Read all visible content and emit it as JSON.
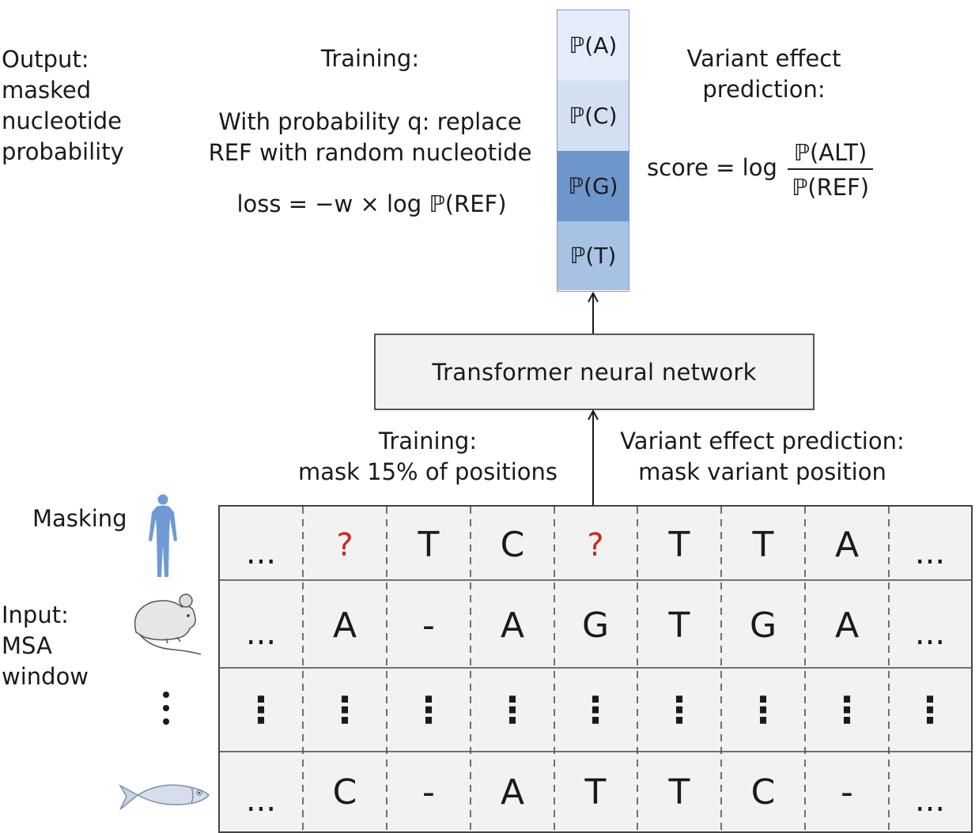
{
  "output_label": [
    "Output:",
    "masked",
    "nucleotide",
    "probability"
  ],
  "training_title": "Training:",
  "training_desc": [
    "With probability q: replace",
    "REF with random nucleotide"
  ],
  "loss_formula": "loss = −w × log ℙ(REF)",
  "probabilities": [
    {
      "label": "ℙ(A)",
      "color": "#e4ecfa"
    },
    {
      "label": "ℙ(C)",
      "color": "#d3e0f1"
    },
    {
      "label": "ℙ(G)",
      "color": "#6d96cb"
    },
    {
      "label": "ℙ(T)",
      "color": "#a8c2e4"
    }
  ],
  "vep_title": [
    "Variant effect",
    "prediction:"
  ],
  "score_prefix": "score = log",
  "score_numerator": "ℙ(ALT)",
  "score_denominator": "ℙ(REF)",
  "transformer_label": "Transformer neural network",
  "training_mask": [
    "Training:",
    "mask 15% of positions"
  ],
  "vep_mask": [
    "Variant effect prediction:",
    "mask variant position"
  ],
  "masking_label": "Masking",
  "input_label": [
    "Input:",
    "MSA",
    "window"
  ],
  "species_icons": [
    "human-icon",
    "mouse-icon",
    "vertical-ellipsis",
    "fish-icon"
  ],
  "msa_rows": [
    [
      "...",
      "?",
      "T",
      "C",
      "?",
      "T",
      "T",
      "A",
      "..."
    ],
    [
      "...",
      "A",
      "-",
      "A",
      "G",
      "T",
      "G",
      "A",
      "..."
    ],
    [
      "⋮",
      "⋮",
      "⋮",
      "⋮",
      "⋮",
      "⋮",
      "⋮",
      "⋮",
      "⋮"
    ],
    [
      "...",
      "C",
      "-",
      "A",
      "T",
      "T",
      "C",
      "-",
      "..."
    ]
  ],
  "colors": {
    "masked": "#cc2a1e",
    "grid_bg": "#f2f2f2",
    "human": "#6f9ad3",
    "prob_border": "#7b9cc9"
  }
}
